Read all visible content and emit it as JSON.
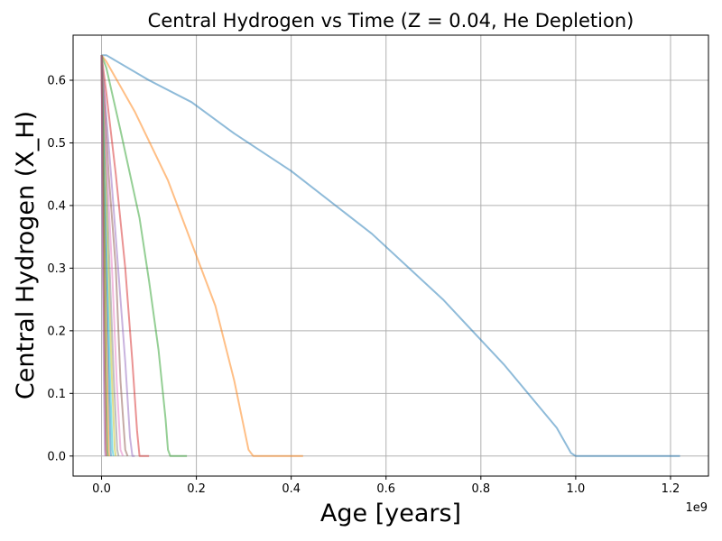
{
  "chart_data": {
    "type": "line",
    "title": "Central Hydrogen vs Time (Z = 0.04, He Depletion)",
    "xlabel": "Age [years]",
    "ylabel": "Central Hydrogen (X_H)",
    "x_offset_label": "1e9",
    "xlim": [
      -0.06,
      1.28
    ],
    "ylim": [
      -0.032,
      0.672
    ],
    "x_ticks": [
      0.0,
      0.2,
      0.4,
      0.6,
      0.8,
      1.0,
      1.2
    ],
    "x_tick_labels": [
      "0.0",
      "0.2",
      "0.4",
      "0.6",
      "0.8",
      "1.0",
      "1.2"
    ],
    "y_ticks": [
      0.0,
      0.1,
      0.2,
      0.3,
      0.4,
      0.5,
      0.6
    ],
    "y_tick_labels": [
      "0.0",
      "0.1",
      "0.2",
      "0.3",
      "0.4",
      "0.5",
      "0.6"
    ],
    "grid": true,
    "series": [
      {
        "color": "#1f77b4",
        "x": [
          0.0,
          0.01,
          0.1,
          0.19,
          0.28,
          0.4,
          0.57,
          0.72,
          0.85,
          0.96,
          0.99,
          1.0,
          1.22
        ],
        "y": [
          0.64,
          0.64,
          0.6,
          0.565,
          0.515,
          0.455,
          0.355,
          0.25,
          0.145,
          0.045,
          0.005,
          0.0,
          0.0
        ]
      },
      {
        "color": "#ff7f0e",
        "x": [
          0.0,
          0.01,
          0.07,
          0.14,
          0.19,
          0.24,
          0.28,
          0.31,
          0.32,
          0.425
        ],
        "y": [
          0.64,
          0.63,
          0.55,
          0.44,
          0.34,
          0.24,
          0.12,
          0.01,
          0.0,
          0.0
        ]
      },
      {
        "color": "#2ca02c",
        "x": [
          0.0,
          0.01,
          0.04,
          0.08,
          0.1,
          0.12,
          0.135,
          0.14,
          0.145,
          0.18
        ],
        "y": [
          0.64,
          0.62,
          0.52,
          0.38,
          0.28,
          0.17,
          0.06,
          0.01,
          0.0,
          0.0
        ]
      },
      {
        "color": "#d62728",
        "x": [
          0.0,
          0.01,
          0.03,
          0.05,
          0.065,
          0.075,
          0.08,
          0.1
        ],
        "y": [
          0.64,
          0.58,
          0.45,
          0.3,
          0.15,
          0.04,
          0.0,
          0.0
        ]
      },
      {
        "color": "#9467bd",
        "x": [
          0.0,
          0.005,
          0.02,
          0.035,
          0.05,
          0.06,
          0.065,
          0.07
        ],
        "y": [
          0.64,
          0.59,
          0.45,
          0.3,
          0.15,
          0.03,
          0.0,
          0.0
        ]
      },
      {
        "color": "#8c564b",
        "x": [
          0.0,
          0.005,
          0.015,
          0.03,
          0.04,
          0.05,
          0.055
        ],
        "y": [
          0.64,
          0.58,
          0.45,
          0.3,
          0.12,
          0.01,
          0.0
        ]
      },
      {
        "color": "#e377c2",
        "x": [
          0.0,
          0.004,
          0.012,
          0.022,
          0.032,
          0.04,
          0.045
        ],
        "y": [
          0.64,
          0.58,
          0.45,
          0.3,
          0.12,
          0.01,
          0.0
        ]
      },
      {
        "color": "#7f7f7f",
        "x": [
          0.0,
          0.003,
          0.01,
          0.018,
          0.026,
          0.033,
          0.036
        ],
        "y": [
          0.64,
          0.57,
          0.44,
          0.28,
          0.12,
          0.01,
          0.0
        ]
      },
      {
        "color": "#bcbd22",
        "x": [
          0.0,
          0.003,
          0.008,
          0.015,
          0.022,
          0.028,
          0.03
        ],
        "y": [
          0.64,
          0.57,
          0.44,
          0.28,
          0.12,
          0.01,
          0.0
        ]
      },
      {
        "color": "#17becf",
        "x": [
          0.0,
          0.002,
          0.006,
          0.012,
          0.018,
          0.023,
          0.025
        ],
        "y": [
          0.64,
          0.57,
          0.44,
          0.28,
          0.12,
          0.01,
          0.0
        ]
      },
      {
        "color": "#1f77b4",
        "x": [
          0.0,
          0.002,
          0.005,
          0.01,
          0.015,
          0.019,
          0.02
        ],
        "y": [
          0.64,
          0.57,
          0.44,
          0.28,
          0.12,
          0.01,
          0.0
        ]
      },
      {
        "color": "#ff7f0e",
        "x": [
          0.0,
          0.001,
          0.004,
          0.008,
          0.012,
          0.015,
          0.016
        ],
        "y": [
          0.64,
          0.57,
          0.44,
          0.28,
          0.12,
          0.01,
          0.0
        ]
      },
      {
        "color": "#2ca02c",
        "x": [
          0.0,
          0.001,
          0.003,
          0.006,
          0.009,
          0.012,
          0.013
        ],
        "y": [
          0.64,
          0.57,
          0.44,
          0.28,
          0.12,
          0.01,
          0.0
        ]
      },
      {
        "color": "#d62728",
        "x": [
          0.0,
          0.001,
          0.002,
          0.004,
          0.007,
          0.009,
          0.01
        ],
        "y": [
          0.64,
          0.57,
          0.44,
          0.28,
          0.12,
          0.01,
          0.0
        ]
      },
      {
        "color": "#9467bd",
        "x": [
          0.0,
          0.0005,
          0.0015,
          0.003,
          0.005,
          0.007,
          0.008
        ],
        "y": [
          0.64,
          0.57,
          0.44,
          0.28,
          0.12,
          0.01,
          0.0
        ]
      }
    ]
  }
}
